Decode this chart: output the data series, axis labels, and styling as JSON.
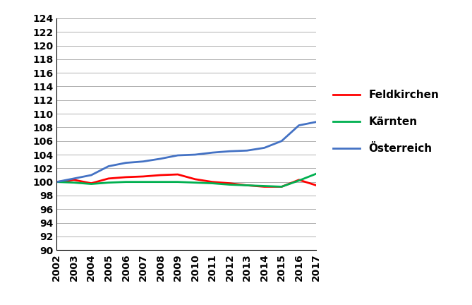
{
  "years": [
    2002,
    2003,
    2004,
    2005,
    2006,
    2007,
    2008,
    2009,
    2010,
    2011,
    2012,
    2013,
    2014,
    2015,
    2016,
    2017
  ],
  "feldkirchen": [
    100.0,
    100.3,
    99.8,
    100.5,
    100.7,
    100.8,
    101.0,
    101.1,
    100.4,
    100.0,
    99.8,
    99.5,
    99.3,
    99.3,
    100.3,
    99.5
  ],
  "karnten": [
    100.0,
    99.9,
    99.7,
    99.9,
    100.0,
    100.0,
    100.0,
    100.0,
    99.9,
    99.8,
    99.6,
    99.5,
    99.4,
    99.3,
    100.2,
    101.2
  ],
  "osterreich": [
    100.0,
    100.5,
    101.0,
    102.3,
    102.8,
    103.0,
    103.4,
    103.9,
    104.0,
    104.3,
    104.5,
    104.6,
    105.0,
    106.0,
    108.3,
    108.8
  ],
  "colors": {
    "feldkirchen": "#ff0000",
    "karnten": "#00b050",
    "osterreich": "#4472c4"
  },
  "legend_labels": [
    "Feldkirchen",
    "Kärnten",
    "Österreich"
  ],
  "ylim": [
    90,
    124
  ],
  "yticks": [
    90,
    92,
    94,
    96,
    98,
    100,
    102,
    104,
    106,
    108,
    110,
    112,
    114,
    116,
    118,
    120,
    122,
    124
  ],
  "line_width": 2.0,
  "bg_color": "#ffffff",
  "grid_color": "#b0b0b0",
  "tick_fontsize": 10,
  "legend_fontsize": 11
}
